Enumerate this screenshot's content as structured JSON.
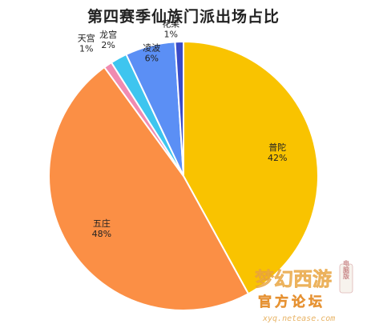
{
  "chart_data": {
    "type": "pie",
    "title": "第四赛季仙族门派出场占比",
    "start_angle_deg": 0,
    "direction": "clockwise",
    "border_color": "#ffffff",
    "slices": [
      {
        "name": "普陀",
        "value": 42,
        "label": "42%",
        "color": "#F9C300"
      },
      {
        "name": "五庄",
        "value": 48,
        "label": "48%",
        "color": "#FB8F45"
      },
      {
        "name": "天宫",
        "value": 1,
        "label": "1%",
        "color": "#F08BB0"
      },
      {
        "name": "龙宫",
        "value": 2,
        "label": "2%",
        "color": "#3EC5EF"
      },
      {
        "name": "凌波",
        "value": 6,
        "label": "6%",
        "color": "#5B8FF5"
      },
      {
        "name": "花果",
        "value": 1,
        "label": "1%",
        "color": "#3A4BC8"
      }
    ]
  },
  "watermark": {
    "logo_text": "梦幻西游",
    "badge_text": "电脑版",
    "tagline": "官方论坛",
    "url": "xyq.netease.com"
  }
}
